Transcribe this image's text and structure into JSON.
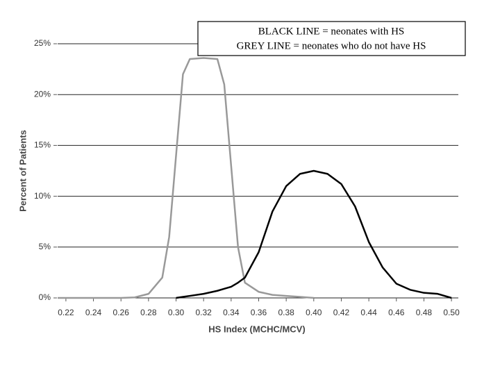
{
  "chart_data": {
    "type": "line",
    "xlabel": "HS Index (MCHC/MCV)",
    "ylabel": "Percent of Patients",
    "annotations": [
      "BLACK LINE = neonates with HS",
      "GREY LINE = neonates who do not have HS"
    ],
    "x": [
      0.214,
      0.24,
      0.26,
      0.27,
      0.28,
      0.29,
      0.295,
      0.3,
      0.305,
      0.31,
      0.32,
      0.33,
      0.335,
      0.34,
      0.345,
      0.35,
      0.36,
      0.37,
      0.38,
      0.39,
      0.4,
      0.41,
      0.42,
      0.43,
      0.44,
      0.45,
      0.46,
      0.47,
      0.48,
      0.49,
      0.5
    ],
    "series": [
      {
        "color": "#999999",
        "values": [
          0,
          0,
          0,
          0.05,
          0.4,
          2,
          6,
          14,
          22,
          23.5,
          23.6,
          23.5,
          21,
          13,
          5,
          1.5,
          0.6,
          0.3,
          0.2,
          0.1,
          0,
          null,
          null,
          null,
          null,
          null,
          null,
          null,
          null,
          null,
          null
        ]
      },
      {
        "color": "#000000",
        "values": [
          null,
          null,
          null,
          null,
          null,
          null,
          null,
          0,
          0.1,
          0.2,
          0.4,
          0.7,
          0.9,
          1.1,
          1.5,
          2.0,
          4.5,
          8.5,
          11,
          12.2,
          12.5,
          12.2,
          11.2,
          9,
          5.5,
          3,
          1.4,
          0.8,
          0.5,
          0.4,
          0
        ]
      }
    ],
    "xlim": [
      0.214,
      0.505
    ],
    "ylim": [
      0,
      25
    ],
    "xticks": [
      0.22,
      0.24,
      0.26,
      0.28,
      {
        "value": 0.3,
        "label": "0.30"
      },
      0.32,
      0.34,
      0.36,
      0.38,
      {
        "value": 0.4,
        "label": "0.40"
      },
      0.42,
      0.44,
      0.46,
      0.48,
      {
        "value": 0.5,
        "label": "0.50"
      }
    ],
    "yticks": [
      {
        "value": 0,
        "label": "0%"
      },
      {
        "value": 5,
        "label": "5%"
      },
      {
        "value": 10,
        "label": "10%"
      },
      {
        "value": 15,
        "label": "15%"
      },
      {
        "value": 20,
        "label": "20%"
      },
      {
        "value": 25,
        "label": "25%"
      }
    ],
    "grid": true
  }
}
